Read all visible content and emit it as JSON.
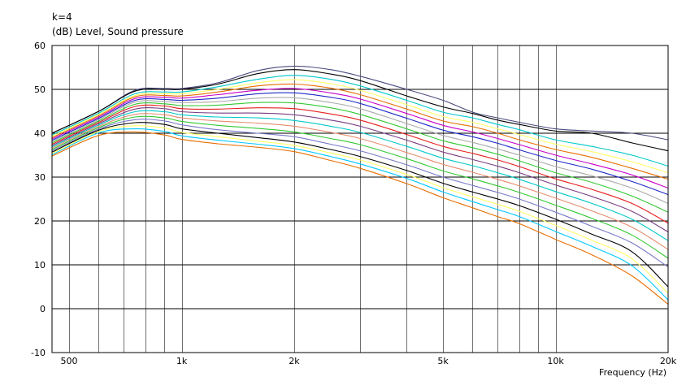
{
  "header": {
    "line1": "k=4",
    "line2": "(dB)  Level, Sound pressure"
  },
  "chart_data": {
    "type": "line",
    "xlabel": "Frequency  (Hz)",
    "ylabel": "(dB)  Level, Sound pressure",
    "x_scale": "log",
    "xlim": [
      450,
      20000
    ],
    "ylim": [
      -10,
      60
    ],
    "y_ticks": [
      -10,
      0,
      10,
      20,
      30,
      40,
      50,
      60
    ],
    "x_ticks": [
      {
        "value": 500,
        "label": "500"
      },
      {
        "value": 1000,
        "label": "1k"
      },
      {
        "value": 2000,
        "label": "2k"
      },
      {
        "value": 5000,
        "label": "5k"
      },
      {
        "value": 10000,
        "label": "10k"
      },
      {
        "value": 20000,
        "label": "20k"
      }
    ],
    "grid": true,
    "x": [
      450,
      600,
      750,
      900,
      1000,
      1250,
      1600,
      2000,
      2500,
      3000,
      4000,
      5000,
      6000,
      7000,
      8000,
      10000,
      12500,
      16000,
      20000
    ],
    "series": [
      {
        "color": "#4a4a80",
        "values": [
          40,
          45,
          49.8,
          50.2,
          50.2,
          51.5,
          54.3,
          55.3,
          54.5,
          53,
          50,
          47.5,
          44.8,
          43.5,
          42.5,
          41,
          40.5,
          40,
          38.5
        ]
      },
      {
        "color": "#000000",
        "values": [
          40,
          45,
          49.6,
          50,
          50,
          51.2,
          53.6,
          54.5,
          53.5,
          52,
          48.5,
          46,
          44.5,
          43,
          42,
          40.5,
          40,
          37.8,
          36
        ]
      },
      {
        "color": "#00c8c8",
        "values": [
          39.6,
          44.6,
          49,
          49.4,
          49.4,
          50.6,
          52.3,
          53.2,
          52.3,
          50.8,
          47.5,
          44.8,
          43.5,
          42,
          40.8,
          38.5,
          37,
          35,
          32.5
        ]
      },
      {
        "color": "#ffff64",
        "values": [
          39.3,
          44.3,
          48.6,
          49,
          49,
          50,
          51.5,
          52.2,
          51.3,
          49.8,
          46.5,
          43.8,
          42.5,
          41,
          39.7,
          37.5,
          35.8,
          33.5,
          31
        ]
      },
      {
        "color": "#e66e00",
        "values": [
          39,
          44,
          48.3,
          48.6,
          48.5,
          49.4,
          50.8,
          51.2,
          50.3,
          48.8,
          45.5,
          42.8,
          41.5,
          40,
          38.5,
          36.3,
          34.5,
          32,
          29.5
        ]
      },
      {
        "color": "#c800c8",
        "values": [
          38.7,
          43.7,
          47.9,
          48.2,
          48,
          48.8,
          49.8,
          50.2,
          49.2,
          47.8,
          44.5,
          41.8,
          40.3,
          38.8,
          37.4,
          35,
          33,
          30.5,
          27.5
        ]
      },
      {
        "color": "#1e28c8",
        "values": [
          38.4,
          43.4,
          47.5,
          47.7,
          47.5,
          48,
          49,
          49.2,
          48.2,
          46.8,
          43.4,
          40.7,
          39.2,
          37.7,
          36.2,
          33.8,
          31.8,
          29,
          26
        ]
      },
      {
        "color": "#aaaaaa",
        "values": [
          38.1,
          43.1,
          47.1,
          47.2,
          47,
          47.2,
          48,
          48.1,
          47,
          45.6,
          42.2,
          39.5,
          37.9,
          36.4,
          35,
          32.4,
          30.3,
          27.5,
          24
        ]
      },
      {
        "color": "#32c832",
        "values": [
          37.8,
          42.8,
          46.6,
          46.7,
          46.3,
          46.4,
          47,
          46.9,
          45.8,
          44.3,
          41,
          38.3,
          36.7,
          35.2,
          33.7,
          31,
          28.8,
          25.7,
          22
        ]
      },
      {
        "color": "#e61e1e",
        "values": [
          37.5,
          42.5,
          46.1,
          46.2,
          45.6,
          45.5,
          45.8,
          45.6,
          44.4,
          43,
          39.7,
          37,
          35.4,
          33.9,
          32.4,
          29.6,
          27.2,
          24,
          19.5
        ]
      },
      {
        "color": "#7a3c82",
        "values": [
          37.2,
          42.2,
          45.5,
          45.6,
          44.9,
          44.6,
          44.6,
          44.2,
          43,
          41.6,
          38.4,
          35.7,
          34,
          32.5,
          31,
          28.2,
          25.6,
          22.2,
          17.5
        ]
      },
      {
        "color": "#00c8c8",
        "values": [
          36.9,
          41.9,
          44.9,
          44.9,
          44.2,
          43.7,
          43.5,
          42.9,
          41.6,
          40.2,
          37,
          34.3,
          32.6,
          31,
          29.5,
          26.7,
          24,
          20.4,
          15.5
        ]
      },
      {
        "color": "#e68c6e",
        "values": [
          36.6,
          41.6,
          44.3,
          44.2,
          43.5,
          42.8,
          42.3,
          41.6,
          40.2,
          38.8,
          35.6,
          32.9,
          31.1,
          29.5,
          28,
          25.2,
          22.3,
          18.6,
          13.5
        ]
      },
      {
        "color": "#32c832",
        "values": [
          36.3,
          41.3,
          43.7,
          43.5,
          42.7,
          41.8,
          41.1,
          40.3,
          38.8,
          37.4,
          34.2,
          31.4,
          29.6,
          28,
          26.5,
          23.6,
          20.6,
          16.8,
          11.5
        ]
      },
      {
        "color": "#7878c8",
        "values": [
          36,
          41,
          43.1,
          42.8,
          41.9,
          40.8,
          40,
          39.2,
          37.5,
          36,
          32.8,
          30,
          28.1,
          26.5,
          25,
          22,
          18.8,
          15,
          9.5
        ]
      },
      {
        "color": "#000000",
        "values": [
          35.7,
          40.7,
          42.4,
          42,
          41,
          40,
          39,
          38,
          36.3,
          34.7,
          31.5,
          28.6,
          26.6,
          25,
          23.5,
          20.4,
          17,
          13,
          5
        ]
      },
      {
        "color": "#ffff64",
        "values": [
          35.4,
          40.4,
          41.7,
          41.2,
          40.2,
          39.2,
          38.2,
          37.2,
          35.5,
          33.9,
          30.6,
          27.6,
          25.5,
          23.8,
          22.2,
          19,
          15.6,
          11.4,
          3.5
        ]
      },
      {
        "color": "#00c8ff",
        "values": [
          35.1,
          40.1,
          41,
          40.4,
          39.4,
          38.4,
          37.5,
          36.5,
          34.7,
          33,
          29.7,
          26.6,
          24.4,
          22.6,
          21,
          17.6,
          14.2,
          9.8,
          2
        ]
      },
      {
        "color": "#e66e00",
        "values": [
          34.8,
          39.5,
          40.3,
          39.6,
          38.6,
          37.6,
          36.8,
          35.8,
          33.8,
          32,
          28.5,
          25.3,
          23,
          21,
          19.4,
          15.8,
          12.3,
          7.5,
          1
        ]
      }
    ]
  }
}
